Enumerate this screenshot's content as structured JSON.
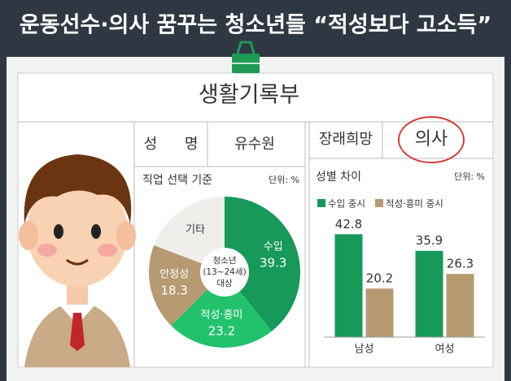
{
  "header": {
    "title": "운동선수·의사 꿈꾸는 청소년들 “적성보다 고소득”"
  },
  "record": {
    "title": "생활기록부",
    "name_label": "성 명",
    "name": "유수원",
    "wish_label": "장래희망",
    "wish": "의사"
  },
  "chart_data": [
    {
      "type": "pie",
      "title": "직업 선택 기준",
      "unit": "단위: %",
      "center_label": [
        "청소년",
        "(13~24세)",
        "대상"
      ],
      "categories": [
        "수입",
        "적성·흥미",
        "안정성",
        "기타"
      ],
      "values": [
        39.3,
        23.2,
        18.3,
        19.2
      ],
      "value_labels": [
        "39.3",
        "23.2",
        "18.3",
        null
      ],
      "colors": [
        "#17995a",
        "#22c26d",
        "#b79a72",
        "#f0eeeb"
      ]
    },
    {
      "type": "bar",
      "title": "성별 차이",
      "unit": "단위: %",
      "categories": [
        "남성",
        "여성"
      ],
      "series": [
        {
          "name": "수입 중시",
          "color": "#17995a",
          "values": [
            42.8,
            35.9
          ]
        },
        {
          "name": "적성·흥미 중시",
          "color": "#b79a72",
          "values": [
            20.2,
            26.3
          ]
        }
      ],
      "ylim": [
        0,
        50
      ]
    }
  ]
}
